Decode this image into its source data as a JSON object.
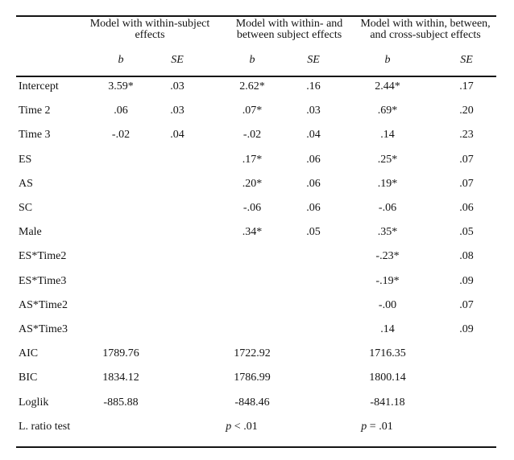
{
  "table": {
    "model_groups": [
      {
        "title_line1": "Model with within-subject",
        "title_line2": "effects"
      },
      {
        "title_line1": "Model with within- and",
        "title_line2": "between subject effects"
      },
      {
        "title_line1": "Model with within, between,",
        "title_line2": "and cross-subject effects"
      }
    ],
    "column_headers": {
      "b": "b",
      "se": "SE"
    },
    "rows": [
      {
        "label": "Intercept",
        "type": "coef",
        "values": [
          "3.59*",
          ".03",
          "2.62*",
          ".16",
          "2.44*",
          ".17"
        ]
      },
      {
        "label": "Time 2",
        "type": "coef",
        "values": [
          ".06",
          ".03",
          ".07*",
          ".03",
          ".69*",
          ".20"
        ]
      },
      {
        "label": "Time 3",
        "type": "coef",
        "values": [
          "-.02",
          ".04",
          "-.02",
          ".04",
          ".14",
          ".23"
        ]
      },
      {
        "label": "ES",
        "type": "coef",
        "values": [
          "",
          "",
          ".17*",
          ".06",
          ".25*",
          ".07"
        ]
      },
      {
        "label": "AS",
        "type": "coef",
        "values": [
          "",
          "",
          ".20*",
          ".06",
          ".19*",
          ".07"
        ]
      },
      {
        "label": "SC",
        "type": "coef",
        "values": [
          "",
          "",
          "-.06",
          ".06",
          "-.06",
          ".06"
        ]
      },
      {
        "label": "Male",
        "type": "coef",
        "values": [
          "",
          "",
          ".34*",
          ".05",
          ".35*",
          ".05"
        ]
      },
      {
        "label": "ES*Time2",
        "type": "coef",
        "values": [
          "",
          "",
          "",
          "",
          "-.23*",
          ".08"
        ]
      },
      {
        "label": "ES*Time3",
        "type": "coef",
        "values": [
          "",
          "",
          "",
          "",
          "-.19*",
          ".09"
        ]
      },
      {
        "label": "AS*Time2",
        "type": "coef",
        "values": [
          "",
          "",
          "",
          "",
          "-.00",
          ".07"
        ]
      },
      {
        "label": "AS*Time3",
        "type": "coef",
        "values": [
          "",
          "",
          "",
          "",
          ".14",
          ".09"
        ]
      },
      {
        "label": "AIC",
        "type": "stat",
        "values": [
          "1789.76",
          "",
          "1722.92",
          "",
          "1716.35",
          ""
        ]
      },
      {
        "label": "BIC",
        "type": "stat",
        "values": [
          "1834.12",
          "",
          "1786.99",
          "",
          "1800.14",
          ""
        ]
      },
      {
        "label": "Loglik",
        "type": "stat",
        "values": [
          "-885.88",
          "",
          "-848.46",
          "",
          "-841.18",
          ""
        ]
      },
      {
        "label": "L. ratio test",
        "type": "pvalue",
        "values": [
          "",
          "",
          "p < .01",
          "",
          "p = .01",
          ""
        ]
      }
    ]
  },
  "colors": {
    "text": "#141414",
    "rule": "#141414",
    "background": "#ffffff"
  }
}
